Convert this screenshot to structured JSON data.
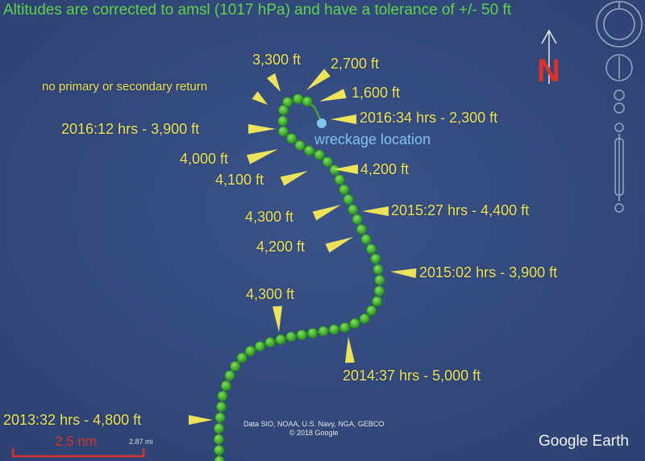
{
  "header": {
    "title": "Altitudes are corrected to amsl (1017 hPa) and have a tolerance of +/- 50 ft"
  },
  "annotations": {
    "a3300": "3,300 ft",
    "a2700": "2,700 ft",
    "a1600": "1,600 ft",
    "no_return": "no primary or secondary return",
    "t2016_12": "2016:12 hrs - 3,900 ft",
    "t2016_34": "2016:34 hrs - 2,300 ft",
    "wreckage": "wreckage location",
    "a4000": "4,000 ft",
    "a4100": "4,100 ft",
    "a4200a": "4,200 ft",
    "a4300a": "4,300 ft",
    "t2015_27": "2015:27 hrs - 4,400 ft",
    "a4200b": "4,200 ft",
    "t2015_02": "2015:02 hrs - 3,900 ft",
    "a4300b": "4,300 ft",
    "t2014_37": "2014:37 hrs - 5,000 ft",
    "t2013_32": "2013:32 hrs - 4,800 ft"
  },
  "map": {
    "north_label": "N",
    "scale_label": "2.5 nm",
    "scale_sub": "2.87 mi",
    "credit_line1": "Data SIO, NOAA, U.S. Navy, NGA, GEBCO",
    "credit_line2": "© 2018 Google",
    "brand": "Google Earth",
    "colors": {
      "track": "#3fb62e",
      "label": "#ece35a",
      "title": "#5fd24a",
      "wreck": "#7fc6e8",
      "north": "#d8332a",
      "ocean": "#344a7e"
    },
    "icons": [
      "compass-icon",
      "look-joystick-icon",
      "move-joystick-icon",
      "zoom-slider-icon"
    ]
  }
}
